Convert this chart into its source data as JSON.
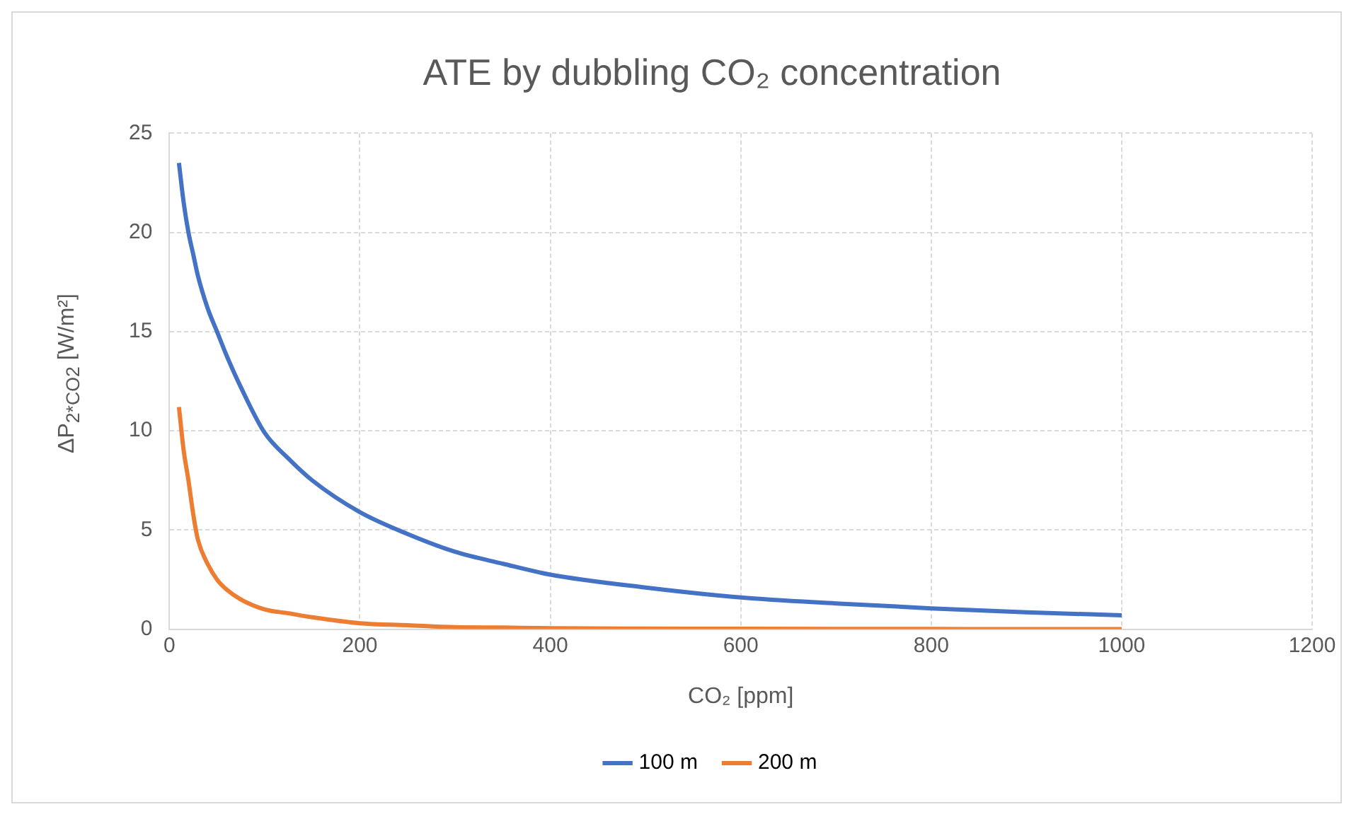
{
  "chart_data": {
    "type": "line",
    "title": "ATE by dubbling CO₂ concentration",
    "xlabel": "CO₂ [ppm]",
    "ylabel": "ΔP$_{2*CO2}$ [W/m²]",
    "x": [
      10,
      15,
      20,
      25,
      30,
      40,
      50,
      60,
      75,
      100,
      125,
      150,
      200,
      250,
      300,
      350,
      400,
      500,
      600,
      700,
      800,
      900,
      1000
    ],
    "series": [
      {
        "name": "100 m",
        "color": "#4472c4",
        "values": [
          23.5,
          21.5,
          20,
          18.9,
          17.8,
          16.2,
          15.0,
          13.8,
          12.2,
          9.9,
          8.6,
          7.5,
          5.9,
          4.8,
          3.9,
          3.3,
          2.75,
          2.1,
          1.6,
          1.3,
          1.05,
          0.85,
          0.7
        ]
      },
      {
        "name": "200 m",
        "color": "#ed7d31",
        "values": [
          11.2,
          9,
          7.5,
          5.8,
          4.5,
          3.3,
          2.5,
          2.0,
          1.5,
          1.0,
          0.8,
          0.6,
          0.3,
          0.2,
          0.1,
          0.08,
          0.05,
          0.03,
          0.02,
          0.01,
          0.01,
          0,
          0
        ]
      }
    ],
    "xlim": [
      0,
      1200
    ],
    "xticks": [
      0,
      200,
      400,
      600,
      800,
      1000,
      1200
    ],
    "ylim": [
      0,
      25
    ],
    "yticks": [
      0,
      5,
      10,
      15,
      20,
      25
    ],
    "grid": true,
    "legend": "bottom",
    "marker": "none",
    "line_style": "solid"
  }
}
